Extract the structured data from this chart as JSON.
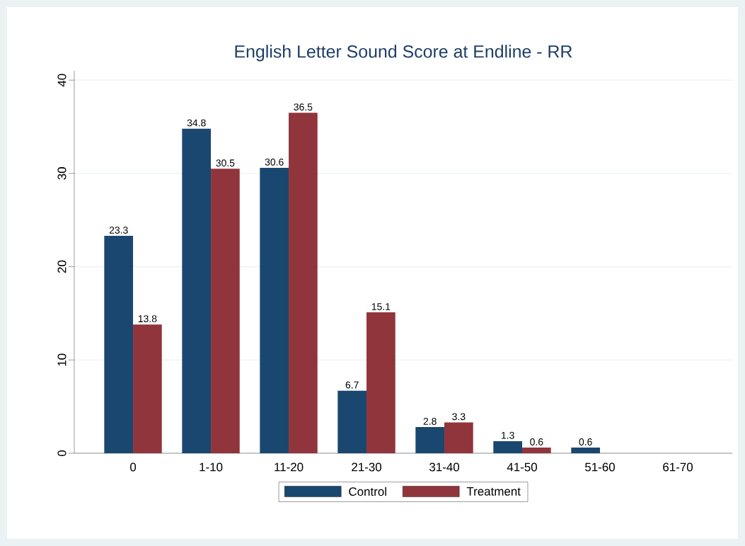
{
  "chart_data": {
    "type": "bar",
    "title": "English Letter Sound Score at Endline - RR",
    "categories": [
      "0",
      "1-10",
      "11-20",
      "21-30",
      "31-40",
      "41-50",
      "51-60",
      "61-70"
    ],
    "series": [
      {
        "name": "Control",
        "color": "#1a476f",
        "values": [
          23.3,
          34.8,
          30.6,
          6.7,
          2.8,
          1.3,
          0.6,
          null
        ]
      },
      {
        "name": "Treatment",
        "color": "#90353b",
        "values": [
          13.8,
          30.5,
          36.5,
          15.1,
          3.3,
          0.6,
          null,
          null
        ]
      }
    ],
    "ylim": [
      0,
      41
    ],
    "yticks": [
      0,
      10,
      20,
      30,
      40
    ],
    "grid": "y",
    "legend": "bottom",
    "data_labels": true
  }
}
